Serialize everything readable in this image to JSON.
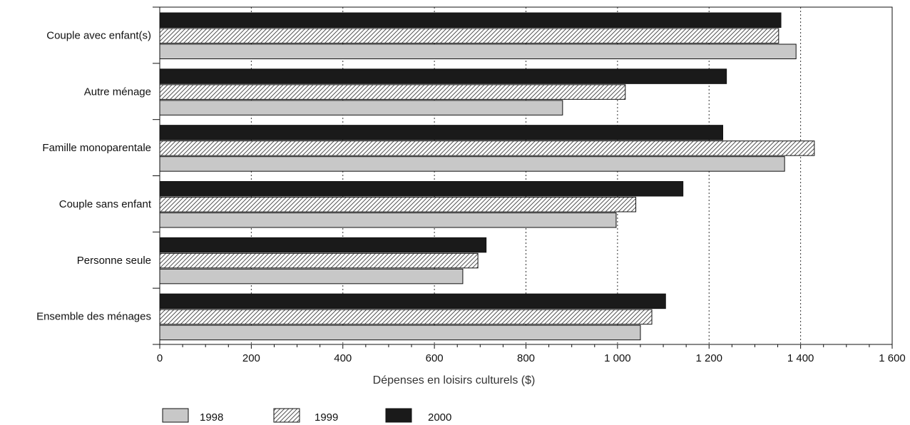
{
  "chart_data": {
    "type": "bar",
    "orientation": "horizontal",
    "categories": [
      "Couple avec enfant(s)",
      "Autre ménage",
      "Famille monoparentale",
      "Couple sans enfant",
      "Personne seule",
      "Ensemble des ménages"
    ],
    "series": [
      {
        "name": "1998",
        "color": "#c8c8c8",
        "pattern": "solid",
        "values": [
          1390,
          880,
          1365,
          997,
          662,
          1050
        ]
      },
      {
        "name": "1999",
        "color": "#ffffff",
        "pattern": "hatched",
        "values": [
          1352,
          1017,
          1430,
          1040,
          695,
          1075
        ]
      },
      {
        "name": "2000",
        "color": "#1a1a1a",
        "pattern": "solid",
        "values": [
          1357,
          1238,
          1230,
          1143,
          713,
          1105
        ]
      }
    ],
    "xlabel": "Dépenses en loisirs culturels ($)",
    "xlim": [
      0,
      1600
    ],
    "xticks": [
      0,
      200,
      400,
      600,
      800,
      1000,
      1200,
      1400,
      1600
    ],
    "xtick_labels": [
      "0",
      "200",
      "400",
      "600",
      "800",
      "1 000",
      "1 200",
      "1 400",
      "1 600"
    ],
    "grid": "vertical dotted",
    "legend_position": "bottom-left"
  }
}
